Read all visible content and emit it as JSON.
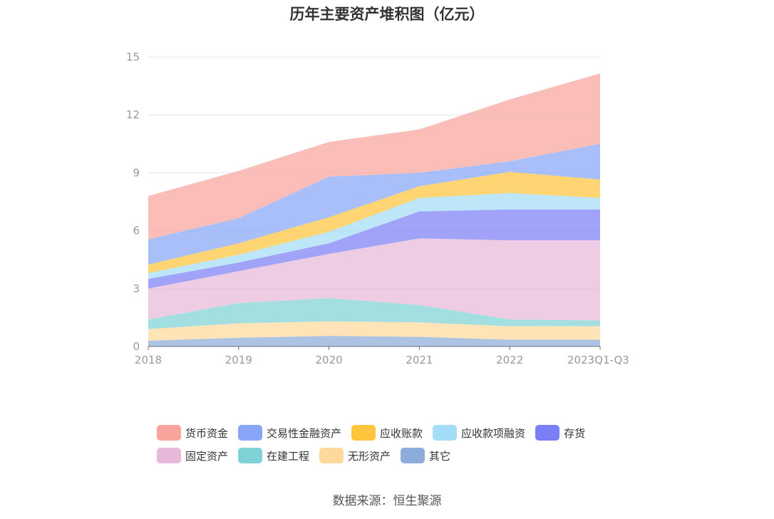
{
  "title": "历年主要资产堆积图（亿元）",
  "source": "数据来源：恒生聚源",
  "chart_data": {
    "type": "area",
    "stacked": true,
    "title": "历年主要资产堆积图（亿元）",
    "categories": [
      "2018",
      "2019",
      "2020",
      "2021",
      "2022",
      "2023Q1-Q3"
    ],
    "ylim": [
      0,
      15
    ],
    "yticks": [
      0,
      3,
      6,
      9,
      12,
      15
    ],
    "grid": true,
    "legend_position": "bottom",
    "series": [
      {
        "name": "其它",
        "color": "#8eacd9",
        "values": [
          0.3,
          0.45,
          0.55,
          0.5,
          0.35,
          0.35
        ]
      },
      {
        "name": "无形资产",
        "color": "#ffd99b",
        "values": [
          0.6,
          0.75,
          0.75,
          0.75,
          0.7,
          0.7
        ]
      },
      {
        "name": "在建工程",
        "color": "#7fd3d6",
        "values": [
          0.5,
          1.05,
          1.2,
          0.9,
          0.35,
          0.3
        ]
      },
      {
        "name": "固定资产",
        "color": "#e8b8d8",
        "values": [
          1.6,
          1.65,
          2.3,
          3.45,
          4.1,
          4.15
        ]
      },
      {
        "name": "存货",
        "color": "#7b7ff5",
        "values": [
          0.5,
          0.45,
          0.55,
          1.4,
          1.6,
          1.6
        ]
      },
      {
        "name": "应收款项融资",
        "color": "#a3ddf6",
        "values": [
          0.3,
          0.4,
          0.6,
          0.7,
          0.85,
          0.6
        ]
      },
      {
        "name": "应收账款",
        "color": "#ffc53d",
        "values": [
          0.45,
          0.6,
          0.75,
          0.6,
          1.1,
          0.95
        ]
      },
      {
        "name": "交易性金融资产",
        "color": "#88a6f8",
        "values": [
          1.3,
          1.3,
          2.1,
          0.7,
          0.55,
          1.85
        ]
      },
      {
        "name": "货币资金",
        "color": "#f8a39c",
        "values": [
          2.25,
          2.45,
          1.8,
          2.25,
          3.2,
          3.65
        ]
      }
    ]
  },
  "legend_rows": [
    [
      "货币资金",
      "交易性金融资产",
      "应收账款",
      "应收款项融资",
      "存货"
    ],
    [
      "固定资产",
      "在建工程",
      "无形资产",
      "其它"
    ]
  ]
}
